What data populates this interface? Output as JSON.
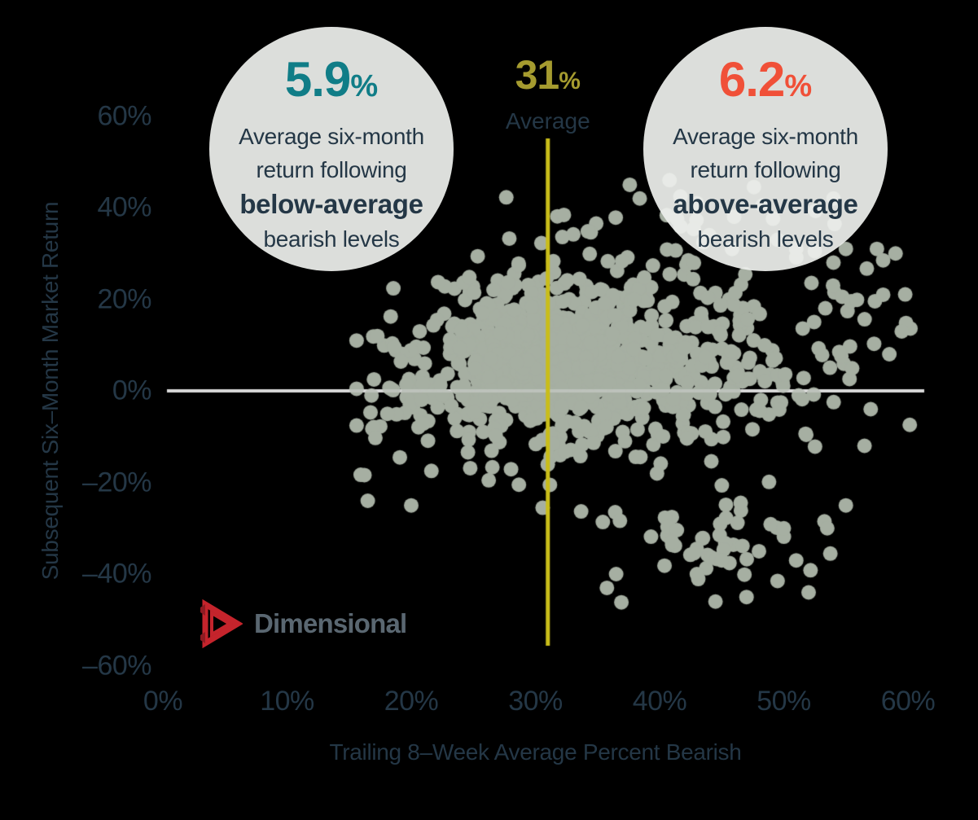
{
  "chart_data": {
    "type": "scatter",
    "xlabel": "Trailing 8–Week Average Percent Bearish",
    "ylabel": "Subsequent Six–Month Market Return",
    "xlim": [
      0,
      60
    ],
    "ylim": [
      -60,
      60
    ],
    "grid": false,
    "x_ticks": [
      {
        "label": "0%",
        "value": 0
      },
      {
        "label": "10%",
        "value": 10
      },
      {
        "label": "20%",
        "value": 20
      },
      {
        "label": "30%",
        "value": 30
      },
      {
        "label": "40%",
        "value": 40
      },
      {
        "label": "50%",
        "value": 50
      },
      {
        "label": "60%",
        "value": 60
      }
    ],
    "y_ticks": [
      {
        "label": "60%",
        "value": 60
      },
      {
        "label": "40%",
        "value": 40
      },
      {
        "label": "20%",
        "value": 20
      },
      {
        "label": "0%",
        "value": 0
      },
      {
        "label": "–20%",
        "value": -20
      },
      {
        "label": "–40%",
        "value": -40
      },
      {
        "label": "–60%",
        "value": -60
      }
    ],
    "zero_line": {
      "y": 0,
      "color": "#d9d9d9"
    },
    "mean_x_line": {
      "value": 31,
      "line_color": "#c9bd1a",
      "label_value": "31",
      "label_suffix": "%",
      "label_caption": "Average",
      "label_color": "#a59b2f"
    },
    "marker": {
      "color": "#a6afa2",
      "radius_px": 9
    },
    "seed": 42,
    "scatter_clusters": [
      {
        "n": 650,
        "cx": 31.5,
        "cy": 7.5,
        "sx": 5.2,
        "sy": 7.5
      },
      {
        "n": 260,
        "cx": 33.0,
        "cy": 3.0,
        "sx": 8.0,
        "sy": 12.0
      },
      {
        "n": 100,
        "cx": 46.0,
        "cy": 8.0,
        "sx": 4.0,
        "sy": 10.0
      },
      {
        "n": 45,
        "cx": 44.0,
        "cy": -33.0,
        "sx": 4.5,
        "sy": 5.5
      },
      {
        "n": 26,
        "cx": 36.0,
        "cy": 35.5,
        "sx": 6.0,
        "sy": 4.5
      },
      {
        "n": 22,
        "cx": 55.5,
        "cy": 12.0,
        "sx": 2.8,
        "sy": 11.0
      },
      {
        "n": 22,
        "cx": 19.0,
        "cy": -6.0,
        "sx": 1.6,
        "sy": 8.0
      }
    ],
    "scatter_outliers": [
      [
        37.6,
        45
      ],
      [
        38.4,
        42
      ],
      [
        40.8,
        46
      ],
      [
        43,
        41
      ],
      [
        46,
        38
      ],
      [
        44,
        34
      ],
      [
        47.6,
        44.5
      ],
      [
        48.3,
        40.5
      ],
      [
        49.5,
        33
      ],
      [
        51,
        31
      ],
      [
        52.5,
        30.5
      ],
      [
        54,
        42
      ],
      [
        54,
        28
      ],
      [
        55,
        31
      ],
      [
        58,
        21
      ],
      [
        57.5,
        31
      ],
      [
        59,
        30
      ],
      [
        58,
        28.5
      ],
      [
        59.5,
        13
      ],
      [
        58.5,
        8
      ],
      [
        57,
        -4
      ],
      [
        56.5,
        -12
      ],
      [
        55,
        -25
      ],
      [
        52,
        -44
      ],
      [
        47,
        -45
      ],
      [
        49.5,
        -41.5
      ],
      [
        44.5,
        -46
      ],
      [
        43,
        -40
      ],
      [
        36.5,
        -40
      ],
      [
        41,
        -33
      ],
      [
        45,
        -37
      ],
      [
        48,
        -35
      ],
      [
        50,
        -30
      ],
      [
        51,
        -37
      ],
      [
        53.5,
        -30
      ],
      [
        16.8,
        -1
      ],
      [
        17,
        2.5
      ],
      [
        16.5,
        -24
      ],
      [
        20,
        -25
      ]
    ]
  },
  "annotations": {
    "left_callout": {
      "value": "5.9",
      "suffix": "%",
      "value_color": "#107d87",
      "line1": "Average six-month",
      "line2": "return following",
      "bold_line": "below-average",
      "line3": "bearish levels"
    },
    "right_callout": {
      "value": "6.2",
      "suffix": "%",
      "value_color": "#f05038",
      "line1": "Average six-month",
      "line2": "return following",
      "bold_line": "above-average",
      "line3": "bearish levels"
    }
  },
  "logo": {
    "text": "Dimensional",
    "icon_color": "#c5242c",
    "icon_dark_color": "#8e1b22",
    "text_color": "#5a6771"
  }
}
